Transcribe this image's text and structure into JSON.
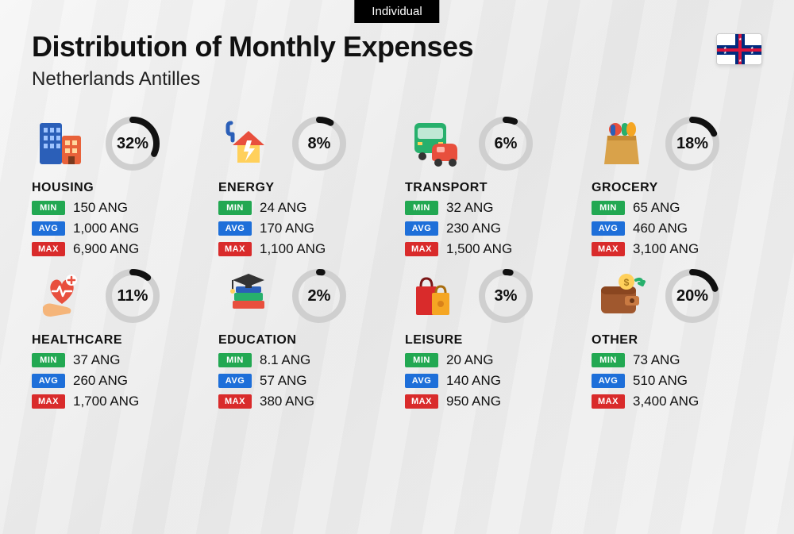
{
  "badge": "Individual",
  "title": "Distribution of Monthly Expenses",
  "subtitle": "Netherlands Antilles",
  "currency": "ANG",
  "labels": {
    "min": "MIN",
    "avg": "AVG",
    "max": "MAX"
  },
  "ring": {
    "track_color": "#cfcfcf",
    "progress_color": "#111111",
    "stroke_width": 8,
    "radius": 30
  },
  "tag_colors": {
    "min": "#22a852",
    "avg": "#1e6fd9",
    "max": "#d92b2b"
  },
  "categories": [
    {
      "key": "housing",
      "name": "HOUSING",
      "percent": 32,
      "min": "150",
      "avg": "1,000",
      "max": "6,900",
      "icon": "buildings"
    },
    {
      "key": "energy",
      "name": "ENERGY",
      "percent": 8,
      "min": "24",
      "avg": "170",
      "max": "1,100",
      "icon": "house-bolt"
    },
    {
      "key": "transport",
      "name": "TRANSPORT",
      "percent": 6,
      "min": "32",
      "avg": "230",
      "max": "1,500",
      "icon": "bus-car"
    },
    {
      "key": "grocery",
      "name": "GROCERY",
      "percent": 18,
      "min": "65",
      "avg": "460",
      "max": "3,100",
      "icon": "grocery-bag"
    },
    {
      "key": "healthcare",
      "name": "HEALTHCARE",
      "percent": 11,
      "min": "37",
      "avg": "260",
      "max": "1,700",
      "icon": "heart-hand"
    },
    {
      "key": "education",
      "name": "EDUCATION",
      "percent": 2,
      "min": "8.1",
      "avg": "57",
      "max": "380",
      "icon": "grad-books"
    },
    {
      "key": "leisure",
      "name": "LEISURE",
      "percent": 3,
      "min": "20",
      "avg": "140",
      "max": "950",
      "icon": "shopping-bags"
    },
    {
      "key": "other",
      "name": "OTHER",
      "percent": 20,
      "min": "73",
      "avg": "510",
      "max": "3,400",
      "icon": "wallet"
    }
  ]
}
